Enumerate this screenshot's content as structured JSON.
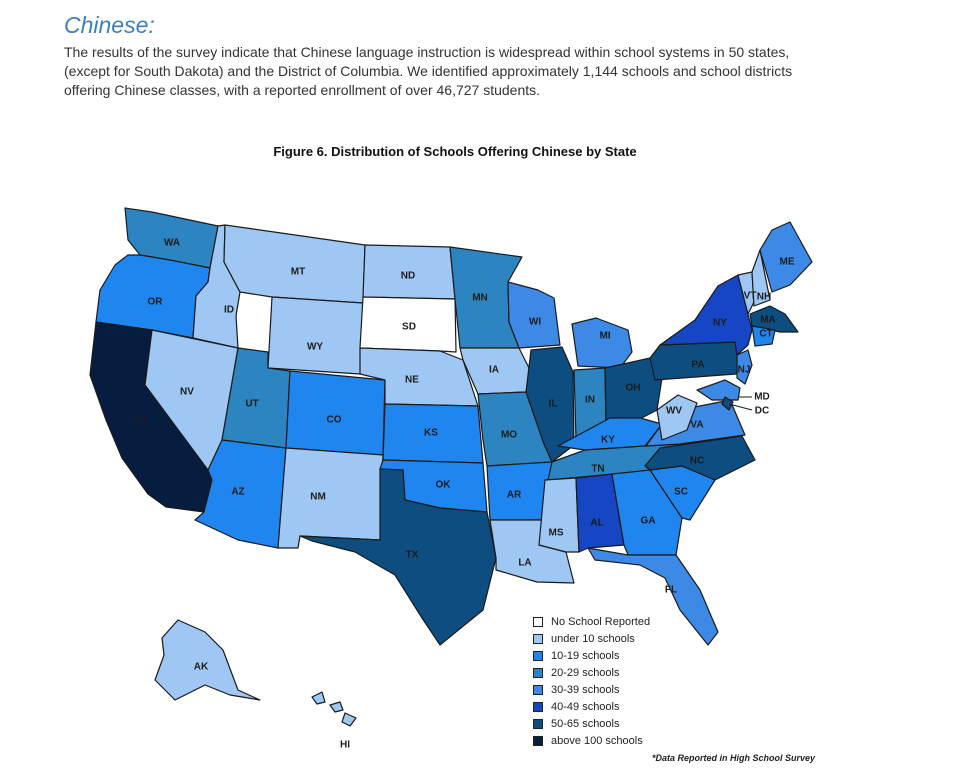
{
  "heading": "Chinese:",
  "intro_lines": [
    "The results of the survey indicate that Chinese language instruction is widespread within school systems in 50 states,",
    "(except for South Dakota) and the District of Columbia. We identified approximately 1,144 schools and school districts",
    "offering Chinese classes, with a reported enrollment of over 46,727 students."
  ],
  "figure_title": "Figure 6. Distribution of Schools Offering Chinese by State",
  "legend": [
    {
      "label": "No School Reported",
      "color": "#ffffff"
    },
    {
      "label": "under 10 schools",
      "color": "#9fc7f3"
    },
    {
      "label": "10-19 schools",
      "color": "#1f86f0"
    },
    {
      "label": "20-29 schools",
      "color": "#2c85c0"
    },
    {
      "label": "30-39 schools",
      "color": "#3d8ae6"
    },
    {
      "label": "40-49 schools",
      "color": "#1646c4"
    },
    {
      "label": "50-65 schools",
      "color": "#0e4d80"
    },
    {
      "label": "above 100 schools",
      "color": "#071d3f"
    }
  ],
  "footnote": "*Data Reported in High School Survey",
  "map_data": {
    "states": [
      {
        "code": "WA",
        "category": 3
      },
      {
        "code": "OR",
        "category": 2
      },
      {
        "code": "CA",
        "category": 7
      },
      {
        "code": "ID",
        "category": 1
      },
      {
        "code": "NV",
        "category": 1
      },
      {
        "code": "MT",
        "category": 1
      },
      {
        "code": "WY",
        "category": 1
      },
      {
        "code": "UT",
        "category": 3
      },
      {
        "code": "AZ",
        "category": 2
      },
      {
        "code": "CO",
        "category": 2
      },
      {
        "code": "NM",
        "category": 1
      },
      {
        "code": "ND",
        "category": 1
      },
      {
        "code": "SD",
        "category": 0
      },
      {
        "code": "NE",
        "category": 1
      },
      {
        "code": "KS",
        "category": 2
      },
      {
        "code": "OK",
        "category": 2
      },
      {
        "code": "TX",
        "category": 6
      },
      {
        "code": "MN",
        "category": 3
      },
      {
        "code": "IA",
        "category": 1
      },
      {
        "code": "MO",
        "category": 3
      },
      {
        "code": "AR",
        "category": 2
      },
      {
        "code": "LA",
        "category": 1
      },
      {
        "code": "WI",
        "category": 4
      },
      {
        "code": "IL",
        "category": 6
      },
      {
        "code": "MI",
        "category": 4
      },
      {
        "code": "IN",
        "category": 3
      },
      {
        "code": "OH",
        "category": 6
      },
      {
        "code": "KY",
        "category": 2
      },
      {
        "code": "TN",
        "category": 3
      },
      {
        "code": "MS",
        "category": 1
      },
      {
        "code": "AL",
        "category": 5
      },
      {
        "code": "GA",
        "category": 2
      },
      {
        "code": "FL",
        "category": 4
      },
      {
        "code": "SC",
        "category": 2
      },
      {
        "code": "NC",
        "category": 6
      },
      {
        "code": "VA",
        "category": 4
      },
      {
        "code": "WV",
        "category": 1
      },
      {
        "code": "PA",
        "category": 6
      },
      {
        "code": "NY",
        "category": 5
      },
      {
        "code": "VT",
        "category": 1
      },
      {
        "code": "NH",
        "category": 1
      },
      {
        "code": "ME",
        "category": 4
      },
      {
        "code": "MA",
        "category": 6
      },
      {
        "code": "CT",
        "category": 2
      },
      {
        "code": "NJ",
        "category": 4
      },
      {
        "code": "MD",
        "category": 4
      },
      {
        "code": "DC",
        "category": 6
      },
      {
        "code": "AK",
        "category": 1
      },
      {
        "code": "HI",
        "category": 1
      }
    ]
  }
}
